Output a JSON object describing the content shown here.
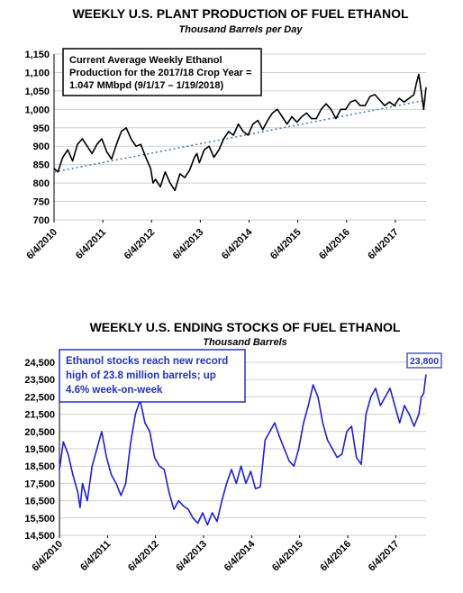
{
  "colors": {
    "production_line": "#000000",
    "trend_line": "#4a7ab8",
    "stocks_line": "#1f1fd6",
    "annotation_blue": "#2233bb",
    "grid": "#cfcfcf"
  },
  "chart_data": [
    {
      "type": "line",
      "title": "WEEKLY U.S. PLANT PRODUCTION OF FUEL ETHANOL",
      "subtitle": "Thousand Barrels per Day",
      "ylim": [
        700,
        1150
      ],
      "yticks": [
        700,
        750,
        800,
        850,
        900,
        950,
        1000,
        1050,
        1100,
        1150
      ],
      "ytick_labels": [
        "700",
        "750",
        "800",
        "850",
        "900",
        "950",
        "1,000",
        "1,050",
        "1,100",
        "1,150"
      ],
      "x_range": [
        2010.42,
        2018.05
      ],
      "xtick_labels": [
        "6/4/2010",
        "6/4/2011",
        "6/4/2012",
        "6/4/2013",
        "6/4/2014",
        "6/4/2015",
        "6/4/2016",
        "6/4/2017"
      ],
      "grid": true,
      "annotation": {
        "lines": [
          "Current Average Weekly Ethanol",
          "Production for the 2017/18 Crop Year =",
          "1.047 MMbpd (9/1/17 – 1/19/2018)"
        ]
      },
      "trend": {
        "x": [
          2010.42,
          2018.05
        ],
        "y": [
          830,
          1025
        ]
      },
      "series": [
        {
          "x": [
            2010.42,
            2010.5,
            2010.6,
            2010.7,
            2010.8,
            2010.9,
            2011.0,
            2011.1,
            2011.2,
            2011.3,
            2011.4,
            2011.5,
            2011.6,
            2011.7,
            2011.8,
            2011.9,
            2012.0,
            2012.1,
            2012.2,
            2012.3,
            2012.4,
            2012.45,
            2012.5,
            2012.6,
            2012.7,
            2012.8,
            2012.9,
            2013.0,
            2013.1,
            2013.2,
            2013.3,
            2013.35,
            2013.4,
            2013.5,
            2013.6,
            2013.7,
            2013.8,
            2013.9,
            2014.0,
            2014.1,
            2014.2,
            2014.3,
            2014.4,
            2014.5,
            2014.6,
            2014.7,
            2014.8,
            2014.9,
            2015.0,
            2015.1,
            2015.2,
            2015.3,
            2015.4,
            2015.5,
            2015.6,
            2015.7,
            2015.8,
            2015.9,
            2016.0,
            2016.1,
            2016.2,
            2016.3,
            2016.4,
            2016.5,
            2016.6,
            2016.7,
            2016.8,
            2016.9,
            2017.0,
            2017.1,
            2017.2,
            2017.3,
            2017.4,
            2017.5,
            2017.6,
            2017.7,
            2017.8,
            2017.85,
            2017.9,
            2017.95,
            2018.0,
            2018.05
          ],
          "y": [
            840,
            830,
            870,
            890,
            860,
            905,
            920,
            900,
            880,
            905,
            920,
            885,
            865,
            905,
            940,
            950,
            920,
            900,
            905,
            870,
            840,
            800,
            810,
            790,
            830,
            800,
            780,
            825,
            815,
            835,
            870,
            880,
            855,
            890,
            900,
            870,
            890,
            920,
            940,
            930,
            960,
            940,
            930,
            960,
            970,
            945,
            970,
            990,
            1000,
            980,
            960,
            980,
            965,
            980,
            990,
            975,
            975,
            1000,
            1015,
            1000,
            975,
            1000,
            1000,
            1020,
            1025,
            1010,
            1010,
            1035,
            1040,
            1025,
            1010,
            1020,
            1010,
            1030,
            1020,
            1030,
            1040,
            1070,
            1095,
            1050,
            1000,
            1060
          ]
        }
      ]
    },
    {
      "type": "line",
      "title": "WEEKLY U.S. ENDING STOCKS OF FUEL ETHANOL",
      "subtitle": "Thousand Barrels",
      "ylim": [
        14500,
        24500
      ],
      "yticks": [
        14500,
        15500,
        16500,
        17500,
        18500,
        19500,
        20500,
        21500,
        22500,
        23500,
        24500
      ],
      "ytick_labels": [
        "14,500",
        "15,500",
        "16,500",
        "17,500",
        "18,500",
        "19,500",
        "20,500",
        "21,500",
        "22,500",
        "23,500",
        "24,500"
      ],
      "x_range": [
        2010.42,
        2018.05
      ],
      "xtick_labels": [
        "6/4/2010",
        "6/4/2011",
        "6/4/2012",
        "6/4/2013",
        "6/4/2014",
        "6/4/2015",
        "6/4/2016",
        "6/4/2017"
      ],
      "grid": true,
      "annotation": {
        "lines": [
          "Ethanol stocks reach new record",
          "high of 23.8 million barrels; up",
          "4.6% week-on-week"
        ]
      },
      "callout": "23,800",
      "series": [
        {
          "x": [
            2010.42,
            2010.5,
            2010.6,
            2010.7,
            2010.8,
            2010.85,
            2010.9,
            2011.0,
            2011.1,
            2011.2,
            2011.3,
            2011.4,
            2011.5,
            2011.6,
            2011.7,
            2011.8,
            2011.9,
            2012.0,
            2012.1,
            2012.2,
            2012.3,
            2012.4,
            2012.5,
            2012.6,
            2012.7,
            2012.8,
            2012.9,
            2013.0,
            2013.1,
            2013.2,
            2013.3,
            2013.4,
            2013.5,
            2013.6,
            2013.7,
            2013.8,
            2013.9,
            2014.0,
            2014.1,
            2014.2,
            2014.3,
            2014.4,
            2014.5,
            2014.6,
            2014.7,
            2014.8,
            2014.9,
            2015.0,
            2015.1,
            2015.2,
            2015.3,
            2015.4,
            2015.5,
            2015.6,
            2015.7,
            2015.8,
            2015.9,
            2016.0,
            2016.1,
            2016.2,
            2016.3,
            2016.4,
            2016.5,
            2016.6,
            2016.7,
            2016.8,
            2016.9,
            2017.0,
            2017.1,
            2017.2,
            2017.3,
            2017.4,
            2017.5,
            2017.6,
            2017.7,
            2017.8,
            2017.9,
            2017.95,
            2018.0,
            2018.05
          ],
          "y": [
            18300,
            19900,
            19200,
            18000,
            17000,
            16100,
            17500,
            16500,
            18500,
            19500,
            20500,
            19000,
            18000,
            17500,
            16800,
            17500,
            19800,
            21500,
            22300,
            21000,
            20500,
            19000,
            18500,
            18300,
            17000,
            16000,
            16500,
            16200,
            16000,
            15500,
            15200,
            15800,
            15100,
            15800,
            15300,
            16500,
            17500,
            18300,
            17500,
            18500,
            17500,
            18200,
            17200,
            17300,
            20000,
            20500,
            21000,
            20200,
            19500,
            18800,
            18500,
            19500,
            21000,
            22000,
            23200,
            22500,
            21000,
            20000,
            19500,
            19000,
            19200,
            20500,
            20800,
            19000,
            18600,
            21500,
            22500,
            23000,
            22000,
            22500,
            23000,
            22000,
            21000,
            22000,
            21500,
            20800,
            21500,
            22500,
            22700,
            23800
          ]
        }
      ]
    }
  ]
}
